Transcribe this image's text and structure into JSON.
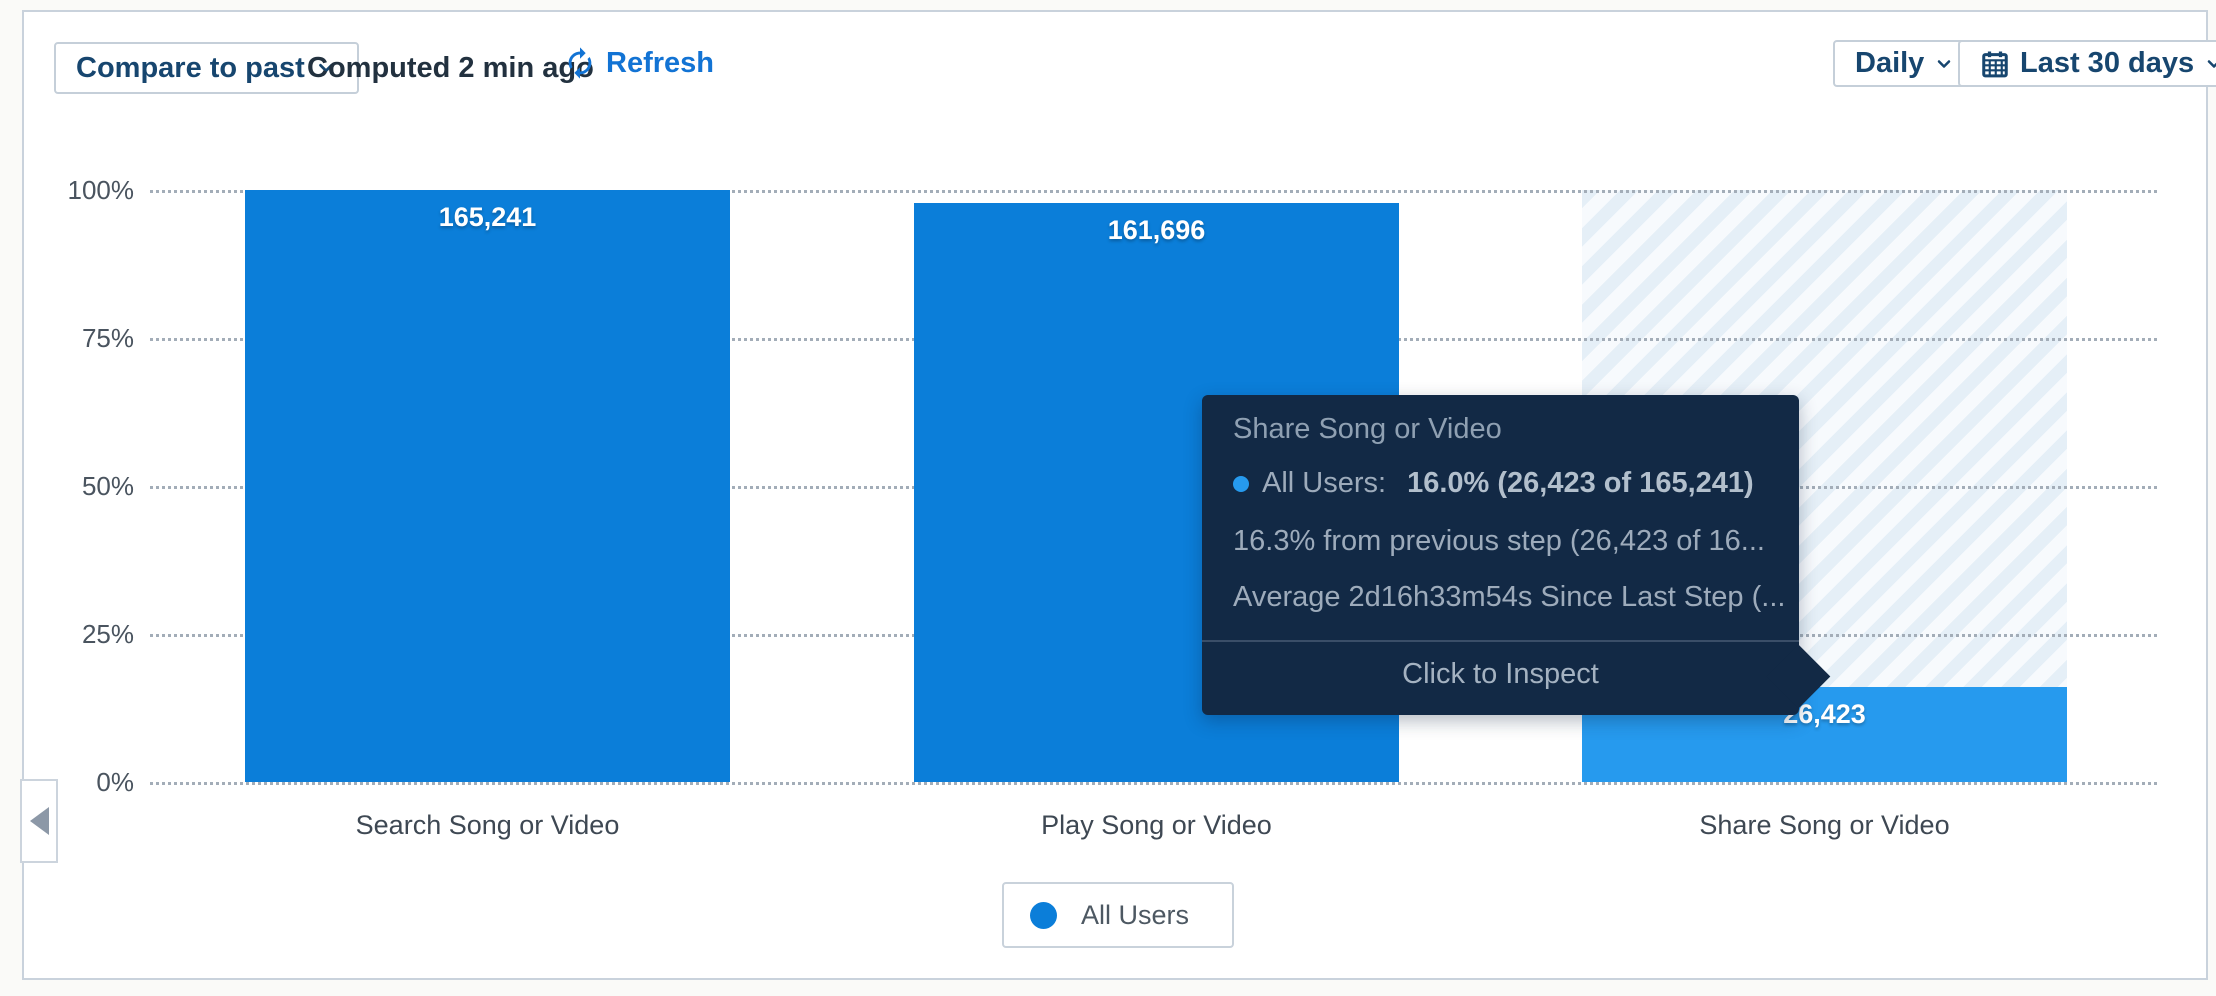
{
  "toolbar": {
    "compare_label": "Compare to past",
    "computed_label": "Computed 2 min ago",
    "refresh_label": "Refresh",
    "interval_label": "Daily",
    "range_label": "Last 30 days"
  },
  "chart_data": {
    "type": "bar",
    "title": "",
    "categories": [
      "Search Song or Video",
      "Play Song or Video",
      "Share Song or Video"
    ],
    "series": [
      {
        "name": "All Users",
        "values": [
          165241,
          161696,
          26423
        ]
      }
    ],
    "value_labels": [
      "165,241",
      "161,696",
      "26,423"
    ],
    "percent_of_first": [
      100,
      97.9,
      16.0
    ],
    "y_ticks": [
      "100%",
      "75%",
      "50%",
      "25%",
      "0%"
    ],
    "ylim": [
      0,
      100
    ],
    "grid": "horizontal-dotted",
    "legend_position": "bottom-center",
    "hovered_index": 2,
    "colors": {
      "bar": "#0b7ed9",
      "hovered_bar": "#269aee",
      "hatch_stripe": "#e5eff7",
      "hatch_bg": "#f7fafd",
      "tooltip_bg": "#122945",
      "accent_blue": "#1273d4"
    }
  },
  "tooltip": {
    "title": "Share Song or Video",
    "series_label": "All Users:",
    "series_value": "16.0% (26,423 of 165,241)",
    "previous_step": "16.3% from previous step (26,423 of 16...",
    "average": "Average 2d16h33m54s Since Last Step (...",
    "cta": "Click to Inspect"
  },
  "legend": {
    "label": "All Users"
  }
}
